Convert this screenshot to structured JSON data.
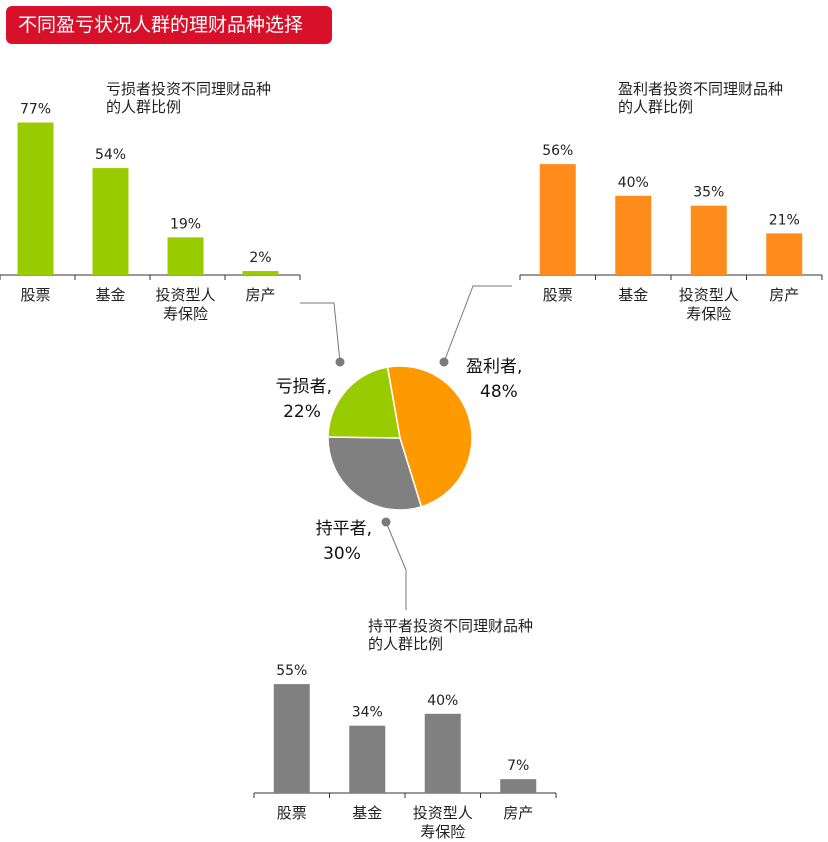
{
  "header": {
    "title": "不同盈亏状况人群的理财品种选择"
  },
  "colors": {
    "loss": "#99cc00",
    "profit": "#ff8c1a",
    "breakeven": "#808080",
    "pie_loss": "#99cc00",
    "pie_profit": "#ff9900",
    "pie_breakeven": "#808080"
  },
  "chart_data": [
    {
      "type": "pie",
      "slices": [
        {
          "label": "盈利者,",
          "percent_label": "48%",
          "value": 48,
          "color": "#ff9900"
        },
        {
          "label": "持平者,",
          "percent_label": "30%",
          "value": 30,
          "color": "#808080"
        },
        {
          "label": "亏损者,",
          "percent_label": "22%",
          "value": 22,
          "color": "#99cc00"
        }
      ]
    },
    {
      "type": "bar",
      "title": "亏损者投资不同理财品种的人群比例",
      "title_lines": [
        "亏损者投资不同理财品种",
        "的人群比例"
      ],
      "categories": [
        [
          "股票"
        ],
        [
          "基金"
        ],
        [
          "投资型人",
          "寿保险"
        ],
        [
          "房产"
        ]
      ],
      "values": [
        77,
        54,
        19,
        2
      ],
      "value_labels": [
        "77%",
        "54%",
        "19%",
        "2%"
      ],
      "color": "#99cc00"
    },
    {
      "type": "bar",
      "title": "盈利者投资不同理财品种的人群比例",
      "title_lines": [
        "盈利者投资不同理财品种",
        "的人群比例"
      ],
      "categories": [
        [
          "股票"
        ],
        [
          "基金"
        ],
        [
          "投资型人",
          "寿保险"
        ],
        [
          "房产"
        ]
      ],
      "values": [
        56,
        40,
        35,
        21
      ],
      "value_labels": [
        "56%",
        "40%",
        "35%",
        "21%"
      ],
      "color": "#ff8c1a"
    },
    {
      "type": "bar",
      "title": "持平者投资不同理财品种的人群比例",
      "title_lines": [
        "持平者投资不同理财品种",
        "的人群比例"
      ],
      "categories": [
        [
          "股票"
        ],
        [
          "基金"
        ],
        [
          "投资型人",
          "寿保险"
        ],
        [
          "房产"
        ]
      ],
      "values": [
        55,
        34,
        40,
        7
      ],
      "value_labels": [
        "55%",
        "34%",
        "40%",
        "7%"
      ],
      "color": "#808080"
    }
  ]
}
